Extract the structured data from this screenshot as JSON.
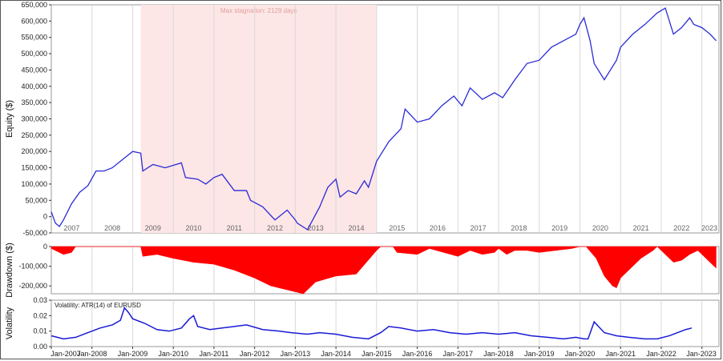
{
  "chart_data": [
    {
      "type": "line",
      "ylabel": "Equity ($)",
      "ylim": [
        -50000,
        650000
      ],
      "y_ticks": [
        "650,000",
        "600,000",
        "550,000",
        "500,000",
        "450,000",
        "400,000",
        "350,000",
        "300,000",
        "250,000",
        "200,000",
        "150,000",
        "100,000",
        "50,000",
        "0",
        "-50,000"
      ],
      "year_labels": [
        "2007",
        "2008",
        "2009",
        "2010",
        "2011",
        "2012",
        "2013",
        "2014",
        "2015",
        "2016",
        "2017",
        "2018",
        "2019",
        "2020",
        "2021",
        "2022",
        "2023"
      ],
      "annotation": "Max stagnation: 2129 days",
      "stagnation_period": [
        "2009.2",
        "2015.0"
      ],
      "colors": {
        "line": "#2b2bd6",
        "stagnation": "#fde6e6",
        "grid": "#d8d8d8"
      },
      "series": [
        {
          "x": [
            2007.0,
            2007.1,
            2007.2,
            2007.3,
            2007.5,
            2007.7,
            2007.9,
            2008.1,
            2008.3,
            2008.5,
            2008.8,
            2009.0,
            2009.2,
            2009.25,
            2009.5,
            2009.8,
            2010.2,
            2010.3,
            2010.6,
            2010.8,
            2011.0,
            2011.2,
            2011.5,
            2011.8,
            2011.9,
            2012.2,
            2012.5,
            2012.8,
            2013.0,
            2013.05,
            2013.3,
            2013.6,
            2013.8,
            2014.0,
            2014.1,
            2014.3,
            2014.5,
            2014.7,
            2014.8,
            2015.0,
            2015.3,
            2015.6,
            2015.7,
            2016.0,
            2016.3,
            2016.6,
            2016.9,
            2017.1,
            2017.3,
            2017.6,
            2017.9,
            2018.1,
            2018.4,
            2018.7,
            2019.0,
            2019.3,
            2019.6,
            2019.9,
            2020.0,
            2020.1,
            2020.25,
            2020.35,
            2020.6,
            2020.75,
            2020.9,
            2021.0,
            2021.3,
            2021.6,
            2021.9,
            2022.1,
            2022.3,
            2022.5,
            2022.7,
            2022.8,
            2023.0,
            2023.2,
            2023.35
          ],
          "y": [
            15000,
            -20000,
            -30000,
            -10000,
            40000,
            75000,
            95000,
            140000,
            140000,
            150000,
            180000,
            200000,
            195000,
            140000,
            160000,
            150000,
            165000,
            120000,
            115000,
            100000,
            120000,
            130000,
            80000,
            80000,
            50000,
            30000,
            -10000,
            20000,
            -10000,
            -20000,
            -40000,
            30000,
            90000,
            115000,
            60000,
            80000,
            70000,
            110000,
            90000,
            170000,
            230000,
            270000,
            330000,
            290000,
            300000,
            340000,
            370000,
            340000,
            395000,
            360000,
            380000,
            365000,
            420000,
            470000,
            480000,
            520000,
            540000,
            560000,
            590000,
            610000,
            540000,
            470000,
            420000,
            450000,
            480000,
            520000,
            560000,
            590000,
            625000,
            640000,
            560000,
            580000,
            610000,
            590000,
            580000,
            560000,
            540000
          ]
        }
      ]
    },
    {
      "type": "area",
      "ylabel": "Drawdown ($)",
      "ylim": [
        -240000,
        0
      ],
      "y_ticks": [
        "0",
        "-100,000",
        "-200,000"
      ],
      "colors": {
        "fill": "#ff0000",
        "grid": "#d8d8d8"
      },
      "series": [
        {
          "x": [
            2007.0,
            2007.3,
            2007.5,
            2007.6,
            2009.2,
            2009.25,
            2009.6,
            2010.0,
            2010.5,
            2011.0,
            2011.5,
            2012.0,
            2012.4,
            2012.8,
            2013.2,
            2013.5,
            2014.0,
            2014.5,
            2015.0,
            2015.1,
            2015.4,
            2015.5,
            2016.0,
            2016.2,
            2016.3,
            2017.0,
            2017.3,
            2017.6,
            2017.9,
            2018.0,
            2018.2,
            2018.4,
            2018.7,
            2019.0,
            2019.4,
            2019.8,
            2020.0,
            2020.15,
            2020.4,
            2020.6,
            2020.8,
            2020.9,
            2021.0,
            2021.2,
            2021.5,
            2021.8,
            2021.9,
            2022.3,
            2022.5,
            2022.7,
            2022.9,
            2023.1,
            2023.35
          ],
          "y": [
            -10000,
            -40000,
            -30000,
            0,
            0,
            -50000,
            -40000,
            -60000,
            -80000,
            -90000,
            -120000,
            -160000,
            -200000,
            -220000,
            -240000,
            -180000,
            -150000,
            -140000,
            -20000,
            0,
            0,
            -30000,
            -40000,
            -20000,
            -10000,
            -50000,
            -20000,
            -40000,
            -30000,
            -10000,
            -40000,
            -20000,
            -20000,
            -30000,
            -20000,
            -10000,
            0,
            0,
            -60000,
            -150000,
            -200000,
            -210000,
            -160000,
            -120000,
            -60000,
            -20000,
            0,
            -80000,
            -70000,
            -40000,
            -20000,
            -60000,
            -110000
          ]
        }
      ]
    },
    {
      "type": "line",
      "ylabel": "Volatility",
      "ylim": [
        0,
        0.03
      ],
      "y_ticks": [
        "0.03",
        "0.02",
        "0.01",
        "0.00"
      ],
      "legend": "Volatility: ATR(14) of EURUSD",
      "x_ticks": [
        "Jan-2007",
        "Jan-2008",
        "Jan-2009",
        "Jan-2010",
        "Jan-2011",
        "Jan-2012",
        "Jan-2013",
        "Jan-2014",
        "Jan-2015",
        "Jan-2016",
        "Jan-2017",
        "Jan-2018",
        "Jan-2019",
        "Jan-2020",
        "Jan-2021",
        "Jan-2022",
        "Jan-2023"
      ],
      "colors": {
        "line": "#1a1ad6",
        "grid": "#d8d8d8"
      },
      "series": [
        {
          "x": [
            2007.0,
            2007.3,
            2007.6,
            2007.9,
            2008.2,
            2008.5,
            2008.7,
            2008.8,
            2008.9,
            2009.0,
            2009.3,
            2009.6,
            2009.9,
            2010.2,
            2010.4,
            2010.5,
            2010.6,
            2010.9,
            2011.2,
            2011.5,
            2011.8,
            2012.2,
            2012.6,
            2012.9,
            2013.3,
            2013.6,
            2014.0,
            2014.4,
            2014.8,
            2015.1,
            2015.3,
            2015.6,
            2016.0,
            2016.4,
            2016.8,
            2017.2,
            2017.6,
            2018.0,
            2018.4,
            2018.8,
            2019.2,
            2019.6,
            2019.9,
            2020.1,
            2020.2,
            2020.35,
            2020.6,
            2020.9,
            2021.2,
            2021.6,
            2021.9,
            2022.2,
            2022.4,
            2022.6,
            2022.75
          ],
          "y": [
            0.007,
            0.005,
            0.006,
            0.009,
            0.012,
            0.014,
            0.017,
            0.025,
            0.022,
            0.018,
            0.015,
            0.011,
            0.01,
            0.012,
            0.018,
            0.02,
            0.013,
            0.011,
            0.012,
            0.013,
            0.014,
            0.011,
            0.01,
            0.009,
            0.008,
            0.009,
            0.008,
            0.006,
            0.005,
            0.009,
            0.013,
            0.012,
            0.01,
            0.011,
            0.009,
            0.008,
            0.009,
            0.008,
            0.009,
            0.007,
            0.006,
            0.005,
            0.006,
            0.005,
            0.005,
            0.016,
            0.009,
            0.007,
            0.006,
            0.005,
            0.005,
            0.007,
            0.009,
            0.011,
            0.012
          ]
        }
      ]
    }
  ]
}
